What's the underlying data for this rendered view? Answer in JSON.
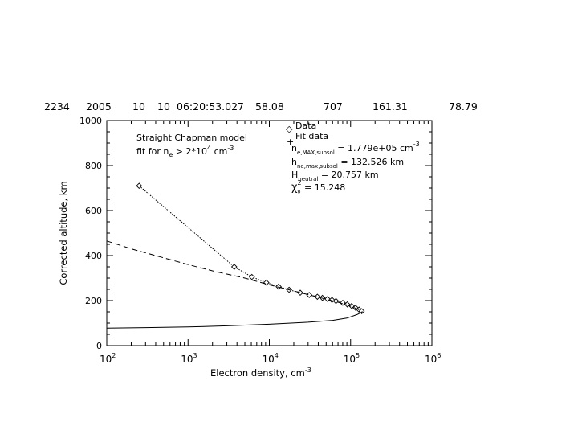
{
  "header": {
    "fields": [
      "2234",
      "2005",
      "10",
      "10",
      "06:20:53.027",
      "58.08",
      "707",
      "161.31",
      "78.79"
    ]
  },
  "legend": {
    "data_label": "Data",
    "fit_label": "Fit data",
    "data_symbol": "◇",
    "fit_symbol": "+"
  },
  "model_annotation": {
    "line1": "Straight Chapman model",
    "line2_prefix": "fit for n",
    "line2_sub": "e",
    "line2_mid": " > 2*10",
    "line2_sup": "4",
    "line2_unit": " cm",
    "line2_unit_sup": "-3"
  },
  "fit_params": {
    "nemax_label": "n",
    "nemax_sub": "e,MAX,subsol",
    "nemax_eq": " =     1.779e+05 cm",
    "nemax_sup": "-3",
    "hmax_label": "h",
    "hmax_sub": "ne,max,subsol",
    "hmax_eq": " =   132.526 km",
    "hneutral_label": "H",
    "hneutral_sub": "neutral",
    "hneutral_eq": " =    20.757 km",
    "chi_label": "χ",
    "chi_sub": "ν",
    "chi_sup": "2",
    "chi_eq": " =  15.248"
  },
  "chart_data": {
    "type": "line",
    "xlabel": "Electron density, cm",
    "xlabel_sup": "-3",
    "ylabel": "Corrected altitude, km",
    "xscale": "log",
    "xlim": [
      100,
      1000000
    ],
    "ylim": [
      0,
      1000
    ],
    "x_ticks": [
      {
        "value": 100,
        "base": "10",
        "exp": "2"
      },
      {
        "value": 1000,
        "base": "10",
        "exp": "3"
      },
      {
        "value": 10000,
        "base": "10",
        "exp": "4"
      },
      {
        "value": 100000,
        "base": "10",
        "exp": "5"
      },
      {
        "value": 1000000,
        "base": "10",
        "exp": "6"
      }
    ],
    "y_ticks": [
      {
        "value": 0,
        "label": "0"
      },
      {
        "value": 200,
        "label": "200"
      },
      {
        "value": 400,
        "label": "400"
      },
      {
        "value": 600,
        "label": "600"
      },
      {
        "value": 800,
        "label": "800"
      },
      {
        "value": 1000,
        "label": "1000"
      }
    ],
    "series": [
      {
        "style": "dotted-with-diamonds",
        "points": [
          [
            250,
            710
          ],
          [
            3700,
            350
          ],
          [
            6100,
            305
          ],
          [
            9200,
            280
          ],
          [
            13000,
            262
          ],
          [
            17500,
            248
          ],
          [
            24000,
            235
          ],
          [
            31000,
            225
          ],
          [
            39000,
            217
          ],
          [
            45000,
            212
          ],
          [
            52000,
            207
          ],
          [
            59000,
            203
          ],
          [
            66000,
            198
          ],
          [
            80000,
            190
          ],
          [
            91000,
            183
          ],
          [
            103000,
            176
          ],
          [
            115000,
            168
          ],
          [
            127000,
            160
          ],
          [
            137000,
            153
          ]
        ]
      },
      {
        "style": "dashed",
        "points": [
          [
            100,
            465
          ],
          [
            200,
            430
          ],
          [
            500,
            390
          ],
          [
            1000,
            360
          ],
          [
            2000,
            332
          ],
          [
            5000,
            300
          ],
          [
            10000,
            270
          ],
          [
            20000,
            243
          ],
          [
            40000,
            215
          ],
          [
            70000,
            193
          ],
          [
            100000,
            175
          ],
          [
            130000,
            158
          ],
          [
            140000,
            150
          ]
        ]
      },
      {
        "style": "solid",
        "points": [
          [
            100,
            78
          ],
          [
            300,
            80
          ],
          [
            1000,
            83
          ],
          [
            3000,
            88
          ],
          [
            10000,
            95
          ],
          [
            30000,
            104
          ],
          [
            60000,
            112
          ],
          [
            90000,
            122
          ],
          [
            120000,
            138
          ],
          [
            140000,
            150
          ]
        ]
      }
    ]
  }
}
